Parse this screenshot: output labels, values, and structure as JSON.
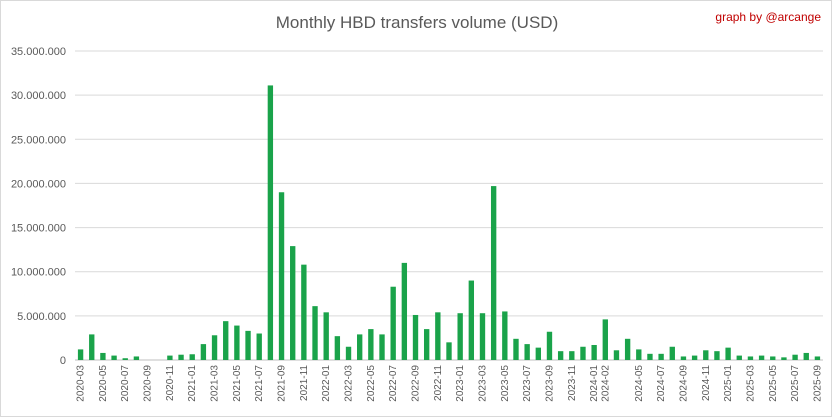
{
  "chart_data": {
    "type": "bar",
    "title": "Monthly HBD transfers volume (USD)",
    "credit": "graph by @arcange",
    "bar_color": "#1aa34a",
    "grid": true,
    "ylim": [
      0,
      35000000
    ],
    "y_ticks": [
      "0",
      "5.000.000",
      "10.000.000",
      "15.000.000",
      "20.000.000",
      "25.000.000",
      "30.000.000",
      "35.000.000"
    ],
    "categories": [
      "2020-03",
      "2020-04",
      "2020-05",
      "2020-06",
      "2020-07",
      "2020-08",
      "2020-09",
      "2020-10",
      "2020-11",
      "2020-12",
      "2021-01",
      "2021-02",
      "2021-03",
      "2021-04",
      "2021-05",
      "2021-06",
      "2021-07",
      "2021-08",
      "2021-09",
      "2021-10",
      "2021-11",
      "2021-12",
      "2022-01",
      "2022-02",
      "2022-03",
      "2022-04",
      "2022-05",
      "2022-06",
      "2022-07",
      "2022-08",
      "2022-09",
      "2022-10",
      "2022-11",
      "2022-12",
      "2023-01",
      "2023-02",
      "2023-03",
      "2023-04",
      "2023-05",
      "2023-06",
      "2023-07",
      "2023-08",
      "2023-09",
      "2023-10",
      "2023-11",
      "2023-12",
      "2024-01",
      "2024-02",
      "2024-03",
      "2024-04",
      "2024-05",
      "2024-06",
      "2024-07",
      "2024-08",
      "2024-09",
      "2024-10",
      "2024-11",
      "2024-12",
      "2025-01",
      "2025-02",
      "2025-03",
      "2025-04",
      "2025-05",
      "2025-06",
      "2025-07",
      "2025-08",
      "2025-09"
    ],
    "x_tick_labels": [
      "2020-03",
      "2020-05",
      "2020-07",
      "2020-09",
      "2020-11",
      "2021-01",
      "2021-03",
      "2021-05",
      "2021-07",
      "2021-09",
      "2021-11",
      "2022-01",
      "2022-03",
      "2022-05",
      "2022-07",
      "2022-09",
      "2022-11",
      "2023-01",
      "2023-03",
      "2023-05",
      "2023-07",
      "2023-09",
      "2023-11",
      "2024-01",
      "2024-02",
      "2024-05",
      "2024-07",
      "2024-09",
      "2024-11",
      "2025-01",
      "2025-03",
      "2025-05",
      "2025-07",
      "2025-09"
    ],
    "values": [
      1200000,
      2900000,
      800000,
      500000,
      200000,
      400000,
      0,
      0,
      500000,
      600000,
      650000,
      1800000,
      2800000,
      4400000,
      3900000,
      3300000,
      3000000,
      31100000,
      19000000,
      12900000,
      10800000,
      6100000,
      5400000,
      2700000,
      1500000,
      2900000,
      3500000,
      2900000,
      8300000,
      11000000,
      5100000,
      3500000,
      5400000,
      2000000,
      5300000,
      9000000,
      5300000,
      19700000,
      5500000,
      2400000,
      1800000,
      1400000,
      3200000,
      1000000,
      1000000,
      1500000,
      1700000,
      4600000,
      1100000,
      2400000,
      1200000,
      700000,
      700000,
      1500000,
      400000,
      500000,
      1100000,
      1000000,
      1400000,
      500000,
      400000,
      500000,
      400000,
      300000,
      600000,
      800000,
      400000
    ]
  }
}
